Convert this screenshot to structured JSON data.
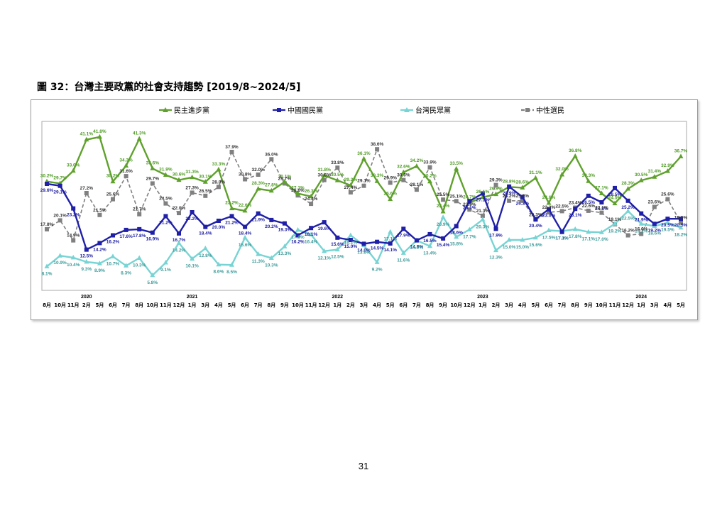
{
  "figure_title": "圖 32：台灣主要政黨的社會支持趨勢 [2019/8~2024/5]",
  "page_number": "31",
  "chart_data": {
    "type": "line",
    "title": "",
    "x": [
      "8月",
      "10月",
      "11月",
      "2月",
      "5月",
      "6月",
      "7月",
      "8月",
      "10月",
      "11月",
      "12月",
      "1月",
      "3月",
      "4月",
      "5月",
      "6月",
      "7月",
      "8月",
      "9月",
      "10月",
      "11月",
      "12月",
      "1月",
      "2月",
      "3月",
      "4月",
      "5月",
      "6月",
      "7月",
      "8月",
      "9月",
      "10月",
      "12月",
      "1月",
      "2月",
      "3月",
      "4月",
      "5月",
      "6月",
      "7月",
      "8月",
      "9月",
      "10月",
      "11月",
      "12月",
      "1月",
      "3月",
      "4月",
      "5月"
    ],
    "year_labels": [
      {
        "label": "2020",
        "index": 3
      },
      {
        "label": "2021",
        "index": 11
      },
      {
        "label": "2022",
        "index": 22
      },
      {
        "label": "2023",
        "index": 33
      },
      {
        "label": "2024",
        "index": 45
      }
    ],
    "grid": "none",
    "legend_position": "top",
    "series": [
      {
        "name": "民主進步黨",
        "color": "#5fa12c",
        "marker": "triangle",
        "dash": "",
        "label_color": "#4f9a24",
        "values": [
          30.2,
          29.7,
          33.0,
          41.1,
          41.8,
          30.2,
          34.3,
          41.3,
          33.6,
          31.9,
          30.6,
          31.3,
          30.1,
          33.3,
          23.2,
          22.6,
          28.3,
          27.8,
          30.1,
          27.1,
          26.3,
          31.8,
          30.5,
          29.2,
          36.1,
          30.3,
          25.6,
          32.6,
          34.2,
          30.2,
          22.4,
          33.5,
          24.7,
          26.1,
          26.9,
          28.8,
          28.6,
          31.1,
          24.6,
          32.0,
          36.8,
          30.3,
          27.1,
          24.5,
          28.3,
          30.5,
          31.4,
          32.9,
          36.7
        ]
      },
      {
        "name": "中國國民黨",
        "color": "#1f1fa8",
        "marker": "square",
        "dash": "",
        "label_color": "#1a1aa0",
        "values": [
          29.6,
          29.1,
          23.2,
          12.5,
          14.2,
          16.2,
          17.6,
          17.8,
          16.9,
          21.2,
          16.7,
          22.2,
          18.4,
          20.0,
          21.2,
          18.4,
          21.9,
          20.2,
          19.3,
          16.2,
          18.1,
          19.6,
          15.6,
          15.0,
          14.0,
          14.5,
          14.1,
          17.9,
          14.9,
          16.5,
          15.4,
          18.6,
          25.1,
          27.1,
          17.9,
          28.9,
          26.2,
          20.4,
          23.0,
          17.1,
          23.1,
          26.5,
          24.8,
          28.5,
          25.2,
          21.9,
          19.2,
          20.5,
          20.5
        ]
      },
      {
        "name": "台灣民眾黨",
        "color": "#78d4d4",
        "marker": "triangle",
        "dash": "",
        "label_color": "#3e9a9a",
        "values": [
          8.1,
          10.9,
          10.4,
          9.3,
          8.9,
          10.7,
          8.3,
          10.3,
          5.8,
          9.1,
          14.2,
          10.1,
          12.8,
          8.6,
          8.5,
          15.6,
          11.3,
          10.3,
          13.3,
          17.6,
          16.4,
          12.1,
          12.5,
          16.2,
          13.6,
          9.2,
          17.1,
          11.6,
          14.9,
          13.4,
          20.9,
          15.8,
          17.7,
          20.3,
          12.3,
          15.0,
          15.0,
          15.6,
          17.5,
          17.3,
          17.8,
          17.1,
          17.0,
          19.2,
          22.5,
          19.2,
          18.6,
          19.5,
          18.2
        ]
      },
      {
        "name": "中性選民",
        "color": "#808080",
        "marker": "square",
        "dash": "5,3",
        "label_color": "#333333",
        "values": [
          17.8,
          20.1,
          14.9,
          27.2,
          21.5,
          25.6,
          31.6,
          21.7,
          29.7,
          24.5,
          22.0,
          27.3,
          26.5,
          28.8,
          37.9,
          30.8,
          32.0,
          36.0,
          29.7,
          26.6,
          24.4,
          30.6,
          33.8,
          27.4,
          29.1,
          38.6,
          29.9,
          30.6,
          28.1,
          33.9,
          25.5,
          25.1,
          22.9,
          21.3,
          29.3,
          25.2,
          25.2,
          20.3,
          22.2,
          22.5,
          23.4,
          22.6,
          22.1,
          19.1,
          16.2,
          16.6,
          23.6,
          25.6,
          19.5
        ]
      }
    ],
    "ylim": [
      0,
      45
    ]
  }
}
